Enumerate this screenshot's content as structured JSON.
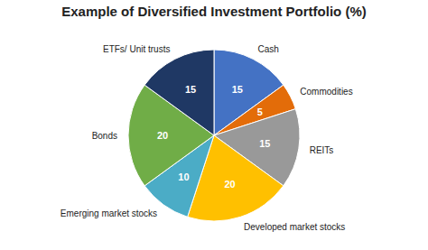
{
  "chart_data": {
    "type": "pie",
    "title": "Example of Diversified Investment Portfolio (%)",
    "categories": [
      "Cash",
      "Commodities",
      "REITs",
      "Developed market stocks",
      "Emerging market stocks",
      "Bonds",
      "ETFs/ Unit trusts"
    ],
    "values": [
      15,
      5,
      15,
      20,
      10,
      20,
      15
    ],
    "colors": [
      "#4472C4",
      "#E36C09",
      "#999999",
      "#FFC000",
      "#4BACC6",
      "#70AD47",
      "#1F3864"
    ],
    "data_labels": true
  }
}
